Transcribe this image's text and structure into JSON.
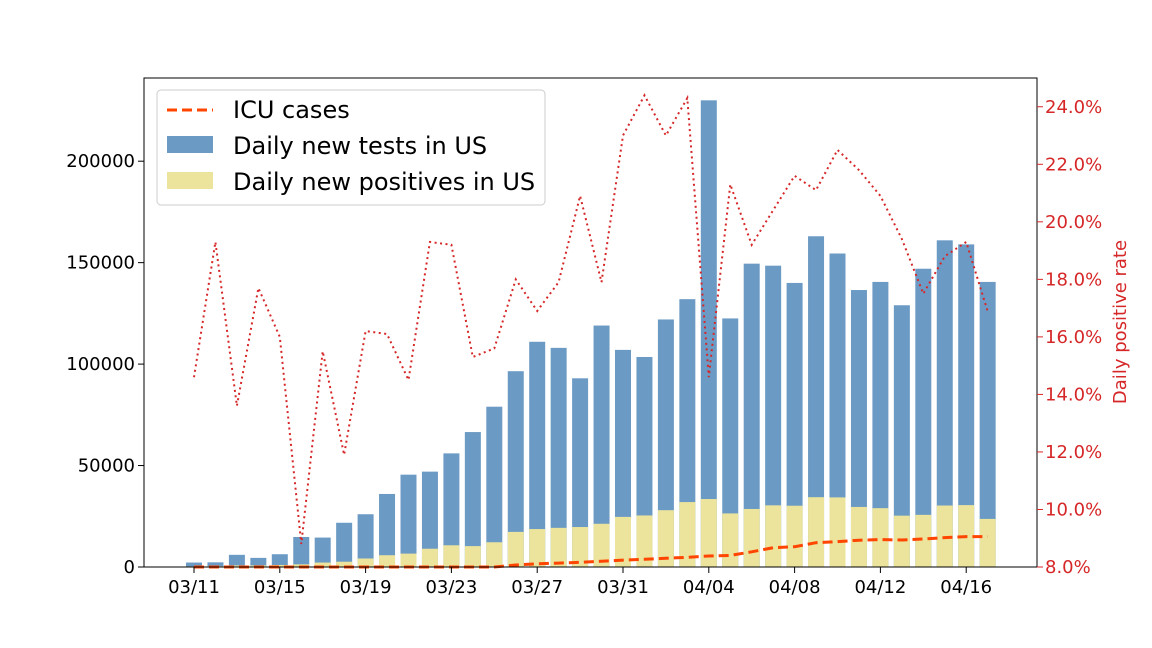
{
  "chart_data": {
    "type": "bar",
    "title": "",
    "xlabel": "",
    "ylabel": "",
    "ylabel_right": "Daily positive rate",
    "x": [
      "03/11",
      "03/12",
      "03/13",
      "03/14",
      "03/15",
      "03/16",
      "03/17",
      "03/18",
      "03/19",
      "03/20",
      "03/21",
      "03/22",
      "03/23",
      "03/24",
      "03/25",
      "03/26",
      "03/27",
      "03/28",
      "03/29",
      "03/30",
      "03/31",
      "04/01",
      "04/02",
      "04/03",
      "04/04",
      "04/05",
      "04/06",
      "04/07",
      "04/08",
      "04/09",
      "04/10",
      "04/11",
      "04/12",
      "04/13",
      "04/14",
      "04/15",
      "04/16",
      "04/17"
    ],
    "x_tick_labels": [
      "03/11",
      "03/15",
      "03/19",
      "03/23",
      "03/27",
      "03/31",
      "04/04",
      "04/08",
      "04/12",
      "04/16"
    ],
    "y_ticks": [
      "0",
      "50000",
      "100000",
      "150000",
      "200000"
    ],
    "y2_ticks": [
      "8.0%",
      "10.0%",
      "12.0%",
      "14.0%",
      "16.0%",
      "18.0%",
      "20.0%",
      "22.0%",
      "24.0%"
    ],
    "ylim": [
      0,
      241000
    ],
    "y2lim": [
      8.0,
      25.0
    ],
    "legend_placement": "top-left",
    "series": [
      {
        "name": "Daily new tests in US",
        "type": "bar",
        "color": "#6b9ac4",
        "values": [
          2200,
          2300,
          6000,
          4500,
          6300,
          14800,
          14500,
          21800,
          26000,
          36000,
          45500,
          47000,
          56000,
          66500,
          79000,
          96500,
          111000,
          108000,
          93000,
          119000,
          107000,
          103500,
          122000,
          132000,
          230000,
          122500,
          149500,
          148500,
          140000,
          163000,
          154500,
          136500,
          140500,
          129000,
          147000,
          161000,
          159000,
          140500
        ]
      },
      {
        "name": "Daily new positives in US",
        "type": "bar",
        "color": "#ece49c",
        "values": [
          300,
          400,
          800,
          800,
          1000,
          1300,
          2200,
          2600,
          4200,
          5800,
          6600,
          9000,
          10700,
          10300,
          12200,
          17300,
          18700,
          19300,
          19700,
          21300,
          24700,
          25400,
          28000,
          32000,
          33500,
          26400,
          28600,
          30400,
          30200,
          34400,
          34300,
          29600,
          29000,
          25300,
          25700,
          30300,
          30500,
          23700
        ]
      },
      {
        "name": "ICU cases",
        "type": "line",
        "style": "dashed",
        "color": "#ff4500",
        "values": [
          0,
          0,
          0,
          0,
          0,
          0,
          0,
          0,
          0,
          0,
          0,
          0,
          0,
          0,
          0,
          1000,
          1600,
          1900,
          2300,
          2800,
          3400,
          3800,
          4300,
          4800,
          5400,
          5700,
          7500,
          9500,
          10000,
          12000,
          12500,
          13200,
          13500,
          13300,
          13800,
          14500,
          15000,
          15000
        ]
      },
      {
        "name": "Daily positive rate",
        "type": "line",
        "style": "dotted",
        "axis": "right",
        "color": "#d62728",
        "values": [
          14.6,
          19.3,
          13.6,
          17.7,
          16.0,
          8.8,
          15.5,
          11.9,
          16.2,
          16.1,
          14.5,
          19.3,
          19.2,
          15.3,
          15.6,
          18.0,
          16.9,
          17.9,
          20.9,
          17.9,
          23.0,
          24.4,
          23.0,
          24.3,
          14.6,
          21.3,
          19.2,
          20.4,
          21.6,
          21.1,
          22.5,
          21.8,
          20.9,
          19.4,
          17.5,
          18.8,
          19.3,
          16.9
        ]
      }
    ]
  }
}
